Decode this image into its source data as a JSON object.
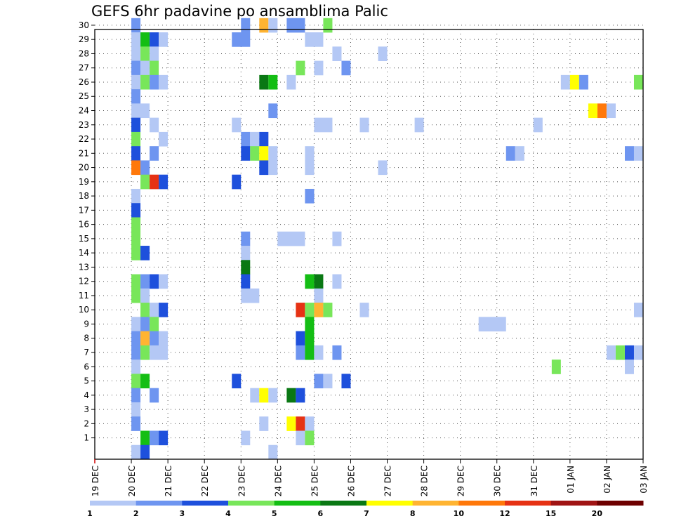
{
  "chart_data": {
    "type": "heatmap",
    "title": "GEFS 6hr padavine po ansamblima Palic",
    "xlabel": "",
    "ylabel": "",
    "x_tick_labels": [
      "19 DEC",
      "20 DEC",
      "21 DEC",
      "22 DEC",
      "23 DEC",
      "24 DEC",
      "25 DEC",
      "26 DEC",
      "27 DEC",
      "28 DEC",
      "29 DEC",
      "30 DEC",
      "31 DEC",
      "01 JAN",
      "02 JAN",
      "03 JAN"
    ],
    "y_tick_labels": [
      "1",
      "2",
      "3",
      "4",
      "5",
      "6",
      "7",
      "8",
      "9",
      "10",
      "11",
      "12",
      "13",
      "14",
      "15",
      "16",
      "17",
      "18",
      "19",
      "20",
      "21",
      "22",
      "23",
      "24",
      "25",
      "26",
      "27",
      "28",
      "29",
      "30"
    ],
    "xlim": [
      0,
      15
    ],
    "ylim": [
      0,
      30
    ],
    "grid": true,
    "colorbar": {
      "labels": [
        "1",
        "2",
        "3",
        "4",
        "5",
        "6",
        "7",
        "8",
        "10",
        "12",
        "15",
        "20"
      ],
      "colors": [
        "#b4c8f5",
        "#6e95f0",
        "#1e50dc",
        "#78e65a",
        "#14be14",
        "#0a7814",
        "#ffff00",
        "#ffb432",
        "#ff780a",
        "#e63214",
        "#a01414",
        "#6e0000"
      ]
    },
    "cells": [
      {
        "m": 30,
        "t": [
          1,
          1.25
        ],
        "c": 1
      },
      {
        "m": 30,
        "t": [
          4,
          4.25
        ],
        "c": 1
      },
      {
        "m": 30,
        "t": [
          4.5,
          4.75
        ],
        "c": 7
      },
      {
        "m": 30,
        "t": [
          4.75,
          5
        ],
        "c": 0
      },
      {
        "m": 30,
        "t": [
          5.25,
          5.75
        ],
        "c": 1
      },
      {
        "m": 30,
        "t": [
          6.25,
          6.5
        ],
        "c": 3
      },
      {
        "m": 29,
        "t": [
          1,
          1.25
        ],
        "c": 0
      },
      {
        "m": 29,
        "t": [
          1.25,
          1.5
        ],
        "c": 4
      },
      {
        "m": 29,
        "t": [
          1.5,
          1.75
        ],
        "c": 2
      },
      {
        "m": 29,
        "t": [
          1.75,
          2
        ],
        "c": 0
      },
      {
        "m": 29,
        "t": [
          3.75,
          4.25
        ],
        "c": 1
      },
      {
        "m": 29,
        "t": [
          5.75,
          6.25
        ],
        "c": 0
      },
      {
        "m": 28,
        "t": [
          1,
          1.25
        ],
        "c": 0
      },
      {
        "m": 28,
        "t": [
          1.25,
          1.5
        ],
        "c": 3
      },
      {
        "m": 28,
        "t": [
          1.5,
          1.75
        ],
        "c": 0
      },
      {
        "m": 28,
        "t": [
          6.5,
          6.75
        ],
        "c": 0
      },
      {
        "m": 28,
        "t": [
          7.75,
          8
        ],
        "c": 0
      },
      {
        "m": 27,
        "t": [
          1,
          1.25
        ],
        "c": 1
      },
      {
        "m": 27,
        "t": [
          1.25,
          1.5
        ],
        "c": 0
      },
      {
        "m": 27,
        "t": [
          1.5,
          1.75
        ],
        "c": 3
      },
      {
        "m": 27,
        "t": [
          5.5,
          5.75
        ],
        "c": 3
      },
      {
        "m": 27,
        "t": [
          6,
          6.25
        ],
        "c": 0
      },
      {
        "m": 27,
        "t": [
          6.75,
          7
        ],
        "c": 1
      },
      {
        "m": 26,
        "t": [
          1,
          1.25
        ],
        "c": 0
      },
      {
        "m": 26,
        "t": [
          1.25,
          1.5
        ],
        "c": 3
      },
      {
        "m": 26,
        "t": [
          1.5,
          1.75
        ],
        "c": 1
      },
      {
        "m": 26,
        "t": [
          1.75,
          2
        ],
        "c": 0
      },
      {
        "m": 26,
        "t": [
          4.5,
          4.75
        ],
        "c": 5
      },
      {
        "m": 26,
        "t": [
          4.75,
          5
        ],
        "c": 4
      },
      {
        "m": 26,
        "t": [
          5.25,
          5.5
        ],
        "c": 0
      },
      {
        "m": 26,
        "t": [
          12.75,
          13
        ],
        "c": 0
      },
      {
        "m": 26,
        "t": [
          13,
          13.25
        ],
        "c": 6
      },
      {
        "m": 26,
        "t": [
          13.25,
          13.5
        ],
        "c": 1
      },
      {
        "m": 26,
        "t": [
          14.75,
          15
        ],
        "c": 3
      },
      {
        "m": 25,
        "t": [
          1,
          1.25
        ],
        "c": 1
      },
      {
        "m": 24,
        "t": [
          1,
          1.5
        ],
        "c": 0
      },
      {
        "m": 24,
        "t": [
          4.75,
          5
        ],
        "c": 1
      },
      {
        "m": 24,
        "t": [
          13.5,
          13.75
        ],
        "c": 6
      },
      {
        "m": 24,
        "t": [
          13.75,
          14
        ],
        "c": 8
      },
      {
        "m": 24,
        "t": [
          14,
          14.25
        ],
        "c": 0
      },
      {
        "m": 23,
        "t": [
          1,
          1.25
        ],
        "c": 2
      },
      {
        "m": 23,
        "t": [
          1.5,
          1.75
        ],
        "c": 0
      },
      {
        "m": 23,
        "t": [
          3.75,
          4
        ],
        "c": 0
      },
      {
        "m": 23,
        "t": [
          6,
          6.5
        ],
        "c": 0
      },
      {
        "m": 23,
        "t": [
          7.25,
          7.5
        ],
        "c": 0
      },
      {
        "m": 23,
        "t": [
          8.75,
          9
        ],
        "c": 0
      },
      {
        "m": 23,
        "t": [
          12,
          12.25
        ],
        "c": 0
      },
      {
        "m": 22,
        "t": [
          1,
          1.25
        ],
        "c": 3
      },
      {
        "m": 22,
        "t": [
          1.75,
          2
        ],
        "c": 0
      },
      {
        "m": 22,
        "t": [
          4,
          4.25
        ],
        "c": 1
      },
      {
        "m": 22,
        "t": [
          4.25,
          4.5
        ],
        "c": 0
      },
      {
        "m": 22,
        "t": [
          4.5,
          4.75
        ],
        "c": 2
      },
      {
        "m": 21,
        "t": [
          1,
          1.25
        ],
        "c": 2
      },
      {
        "m": 21,
        "t": [
          1.5,
          1.75
        ],
        "c": 1
      },
      {
        "m": 21,
        "t": [
          4,
          4.25
        ],
        "c": 2
      },
      {
        "m": 21,
        "t": [
          4.25,
          4.5
        ],
        "c": 3
      },
      {
        "m": 21,
        "t": [
          4.5,
          4.75
        ],
        "c": 6
      },
      {
        "m": 21,
        "t": [
          4.75,
          5
        ],
        "c": 0
      },
      {
        "m": 21,
        "t": [
          5.75,
          6
        ],
        "c": 0
      },
      {
        "m": 21,
        "t": [
          11.25,
          11.5
        ],
        "c": 1
      },
      {
        "m": 21,
        "t": [
          11.5,
          11.75
        ],
        "c": 0
      },
      {
        "m": 21,
        "t": [
          14.5,
          14.75
        ],
        "c": 1
      },
      {
        "m": 21,
        "t": [
          14.75,
          15
        ],
        "c": 0
      },
      {
        "m": 20,
        "t": [
          1,
          1.25
        ],
        "c": 8
      },
      {
        "m": 20,
        "t": [
          1.25,
          1.5
        ],
        "c": 1
      },
      {
        "m": 20,
        "t": [
          4.5,
          4.75
        ],
        "c": 2
      },
      {
        "m": 20,
        "t": [
          4.75,
          5
        ],
        "c": 0
      },
      {
        "m": 20,
        "t": [
          5.75,
          6
        ],
        "c": 0
      },
      {
        "m": 20,
        "t": [
          7.75,
          8
        ],
        "c": 0
      },
      {
        "m": 19,
        "t": [
          1.25,
          1.5
        ],
        "c": 3
      },
      {
        "m": 19,
        "t": [
          1.5,
          1.75
        ],
        "c": 9
      },
      {
        "m": 19,
        "t": [
          1.75,
          2
        ],
        "c": 2
      },
      {
        "m": 19,
        "t": [
          3.75,
          4
        ],
        "c": 2
      },
      {
        "m": 18,
        "t": [
          1,
          1.25
        ],
        "c": 0
      },
      {
        "m": 18,
        "t": [
          5.75,
          6
        ],
        "c": 1
      },
      {
        "m": 17,
        "t": [
          1,
          1.25
        ],
        "c": 2
      },
      {
        "m": 16,
        "t": [
          1,
          1.25
        ],
        "c": 3
      },
      {
        "m": 15,
        "t": [
          1,
          1.25
        ],
        "c": 3
      },
      {
        "m": 15,
        "t": [
          4,
          4.25
        ],
        "c": 1
      },
      {
        "m": 15,
        "t": [
          5,
          5.75
        ],
        "c": 0
      },
      {
        "m": 15,
        "t": [
          6.5,
          6.75
        ],
        "c": 0
      },
      {
        "m": 14,
        "t": [
          1,
          1.25
        ],
        "c": 3
      },
      {
        "m": 14,
        "t": [
          1.25,
          1.5
        ],
        "c": 2
      },
      {
        "m": 14,
        "t": [
          4,
          4.25
        ],
        "c": 0
      },
      {
        "m": 13,
        "t": [
          4,
          4.25
        ],
        "c": 5
      },
      {
        "m": 12,
        "t": [
          1,
          1.25
        ],
        "c": 3
      },
      {
        "m": 12,
        "t": [
          1.25,
          1.5
        ],
        "c": 1
      },
      {
        "m": 12,
        "t": [
          1.5,
          1.75
        ],
        "c": 2
      },
      {
        "m": 12,
        "t": [
          1.75,
          2
        ],
        "c": 0
      },
      {
        "m": 12,
        "t": [
          4,
          4.25
        ],
        "c": 2
      },
      {
        "m": 12,
        "t": [
          5.75,
          6
        ],
        "c": 4
      },
      {
        "m": 12,
        "t": [
          6,
          6.25
        ],
        "c": 5
      },
      {
        "m": 12,
        "t": [
          6.5,
          6.75
        ],
        "c": 0
      },
      {
        "m": 11,
        "t": [
          1,
          1.25
        ],
        "c": 3
      },
      {
        "m": 11,
        "t": [
          1.25,
          1.5
        ],
        "c": 0
      },
      {
        "m": 11,
        "t": [
          4,
          4.5
        ],
        "c": 0
      },
      {
        "m": 11,
        "t": [
          6,
          6.25
        ],
        "c": 0
      },
      {
        "m": 10,
        "t": [
          1.25,
          1.5
        ],
        "c": 3
      },
      {
        "m": 10,
        "t": [
          1.5,
          1.75
        ],
        "c": 0
      },
      {
        "m": 10,
        "t": [
          1.75,
          2
        ],
        "c": 2
      },
      {
        "m": 10,
        "t": [
          5.5,
          5.75
        ],
        "c": 9
      },
      {
        "m": 10,
        "t": [
          5.75,
          6
        ],
        "c": 3
      },
      {
        "m": 10,
        "t": [
          6,
          6.25
        ],
        "c": 7
      },
      {
        "m": 10,
        "t": [
          6.25,
          6.5
        ],
        "c": 3
      },
      {
        "m": 10,
        "t": [
          7.25,
          7.5
        ],
        "c": 0
      },
      {
        "m": 10,
        "t": [
          14.75,
          15
        ],
        "c": 0
      },
      {
        "m": 9,
        "t": [
          1,
          1.25
        ],
        "c": 0
      },
      {
        "m": 9,
        "t": [
          1.25,
          1.5
        ],
        "c": 1
      },
      {
        "m": 9,
        "t": [
          1.5,
          1.75
        ],
        "c": 3
      },
      {
        "m": 9,
        "t": [
          5.75,
          6
        ],
        "c": 4
      },
      {
        "m": 9,
        "t": [
          10.5,
          11.25
        ],
        "c": 0
      },
      {
        "m": 8,
        "t": [
          1,
          1.25
        ],
        "c": 1
      },
      {
        "m": 8,
        "t": [
          1.25,
          1.5
        ],
        "c": 7
      },
      {
        "m": 8,
        "t": [
          1.5,
          1.75
        ],
        "c": 1
      },
      {
        "m": 8,
        "t": [
          1.75,
          2
        ],
        "c": 0
      },
      {
        "m": 8,
        "t": [
          5.5,
          5.75
        ],
        "c": 2
      },
      {
        "m": 8,
        "t": [
          5.75,
          6
        ],
        "c": 4
      },
      {
        "m": 7,
        "t": [
          1,
          1.25
        ],
        "c": 1
      },
      {
        "m": 7,
        "t": [
          1.25,
          1.5
        ],
        "c": 3
      },
      {
        "m": 7,
        "t": [
          1.5,
          2
        ],
        "c": 0
      },
      {
        "m": 7,
        "t": [
          5.5,
          5.75
        ],
        "c": 1
      },
      {
        "m": 7,
        "t": [
          5.75,
          6
        ],
        "c": 4
      },
      {
        "m": 7,
        "t": [
          6,
          6.25
        ],
        "c": 0
      },
      {
        "m": 7,
        "t": [
          6.5,
          6.75
        ],
        "c": 1
      },
      {
        "m": 7,
        "t": [
          14,
          14.25
        ],
        "c": 0
      },
      {
        "m": 7,
        "t": [
          14.25,
          14.5
        ],
        "c": 3
      },
      {
        "m": 7,
        "t": [
          14.5,
          14.75
        ],
        "c": 2
      },
      {
        "m": 7,
        "t": [
          14.75,
          15
        ],
        "c": 0
      },
      {
        "m": 6,
        "t": [
          1,
          1.25
        ],
        "c": 0
      },
      {
        "m": 6,
        "t": [
          12.5,
          12.75
        ],
        "c": 3
      },
      {
        "m": 6,
        "t": [
          14.5,
          14.75
        ],
        "c": 0
      },
      {
        "m": 5,
        "t": [
          1,
          1.25
        ],
        "c": 3
      },
      {
        "m": 5,
        "t": [
          1.25,
          1.5
        ],
        "c": 4
      },
      {
        "m": 5,
        "t": [
          3.75,
          4
        ],
        "c": 2
      },
      {
        "m": 5,
        "t": [
          6,
          6.25
        ],
        "c": 1
      },
      {
        "m": 5,
        "t": [
          6.25,
          6.5
        ],
        "c": 0
      },
      {
        "m": 5,
        "t": [
          6.75,
          7
        ],
        "c": 2
      },
      {
        "m": 4,
        "t": [
          1,
          1.25
        ],
        "c": 1
      },
      {
        "m": 4,
        "t": [
          1.5,
          1.75
        ],
        "c": 1
      },
      {
        "m": 4,
        "t": [
          4.25,
          4.5
        ],
        "c": 0
      },
      {
        "m": 4,
        "t": [
          4.5,
          4.75
        ],
        "c": 6
      },
      {
        "m": 4,
        "t": [
          4.75,
          5
        ],
        "c": 0
      },
      {
        "m": 4,
        "t": [
          5.25,
          5.5
        ],
        "c": 5
      },
      {
        "m": 4,
        "t": [
          5.5,
          5.75
        ],
        "c": 2
      },
      {
        "m": 3,
        "t": [
          1,
          1.25
        ],
        "c": 0
      },
      {
        "m": 2,
        "t": [
          1,
          1.25
        ],
        "c": 1
      },
      {
        "m": 2,
        "t": [
          4.5,
          4.75
        ],
        "c": 0
      },
      {
        "m": 2,
        "t": [
          5.25,
          5.5
        ],
        "c": 6
      },
      {
        "m": 2,
        "t": [
          5.5,
          5.75
        ],
        "c": 9
      },
      {
        "m": 2,
        "t": [
          5.75,
          6
        ],
        "c": 0
      },
      {
        "m": 1,
        "t": [
          1.25,
          1.5
        ],
        "c": 4
      },
      {
        "m": 1,
        "t": [
          1.5,
          1.75
        ],
        "c": 1
      },
      {
        "m": 1,
        "t": [
          1.75,
          2
        ],
        "c": 2
      },
      {
        "m": 1,
        "t": [
          4,
          4.25
        ],
        "c": 0
      },
      {
        "m": 1,
        "t": [
          5.5,
          5.75
        ],
        "c": 0
      },
      {
        "m": 1,
        "t": [
          5.75,
          6
        ],
        "c": 3
      },
      {
        "m": 0,
        "t": [
          1,
          1.25
        ],
        "c": 0
      },
      {
        "m": 0,
        "t": [
          1.25,
          1.5
        ],
        "c": 2
      },
      {
        "m": 0,
        "t": [
          4.75,
          5
        ],
        "c": 0
      }
    ]
  }
}
